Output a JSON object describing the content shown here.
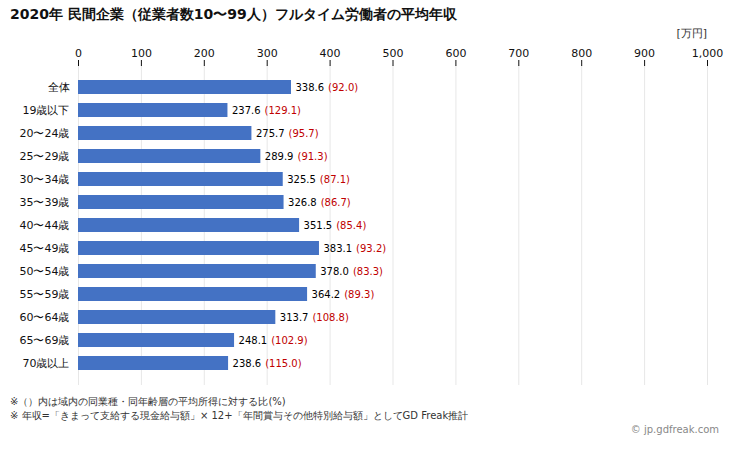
{
  "chart_data": {
    "type": "bar",
    "orientation": "horizontal",
    "title": "2020年 民間企業（従業者数10〜99人）フルタイム労働者の平均年収",
    "xlabel": "[万円]",
    "categories": [
      "全体",
      "19歳以下",
      "20〜24歳",
      "25〜29歳",
      "30〜34歳",
      "35〜39歳",
      "40〜44歳",
      "45〜49歳",
      "50〜54歳",
      "55〜59歳",
      "60〜64歳",
      "65〜69歳",
      "70歳以上"
    ],
    "values": [
      338.6,
      237.6,
      275.7,
      289.9,
      325.5,
      326.8,
      351.5,
      383.1,
      378.0,
      364.2,
      313.7,
      248.1,
      238.6
    ],
    "value_labels": [
      "338.6",
      "237.6",
      "275.7",
      "289.9",
      "325.5",
      "326.8",
      "351.5",
      "383.1",
      "378.0",
      "364.2",
      "313.7",
      "248.1",
      "238.6"
    ],
    "ratios": {
      "values": [
        92.0,
        129.1,
        95.7,
        91.3,
        87.1,
        86.7,
        85.4,
        93.2,
        83.3,
        89.3,
        108.8,
        102.9,
        115.0
      ],
      "value_labels": [
        "(92.0)",
        "(129.1)",
        "(95.7)",
        "(91.3)",
        "(87.1)",
        "(86.7)",
        "(85.4)",
        "(93.2)",
        "(83.3)",
        "(89.3)",
        "(108.8)",
        "(102.9)",
        "(115.0)"
      ],
      "color": "#c00000"
    },
    "color": "#4472c4",
    "data_labels": true,
    "xlim": [
      0,
      1000
    ],
    "xticks": [
      0,
      100,
      200,
      300,
      400,
      500,
      600,
      700,
      800,
      900,
      1000
    ],
    "grid": true,
    "footnotes": [
      "※（）内は域内の同業種・同年齢層の平均所得に対する比(%)",
      "※ 年収=「きまって支給する現金給与額」× 12+「年間賞与その他特別給与額」としてGD Freak推計"
    ],
    "watermark": "© jp.gdfreak.com"
  }
}
